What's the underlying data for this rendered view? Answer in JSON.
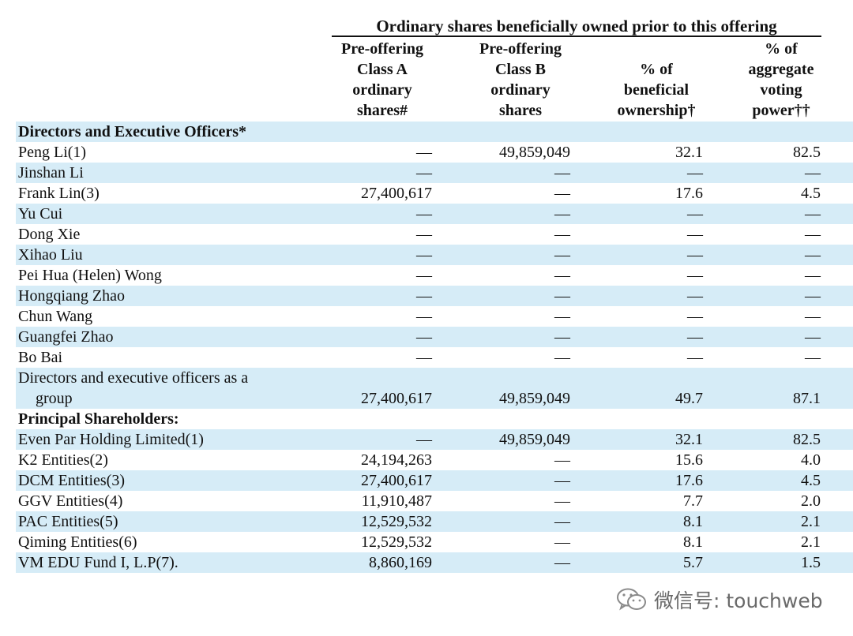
{
  "header": {
    "group_title": "Ordinary shares beneficially owned prior to this offering",
    "columns": [
      [
        "Pre-offering",
        "Class  A",
        "ordinary",
        "shares#"
      ],
      [
        "Pre-offering",
        "Class B",
        "ordinary",
        "shares"
      ],
      [
        "% of",
        "beneficial",
        "ownership†"
      ],
      [
        "% of",
        "aggregate",
        "voting",
        "power††"
      ]
    ]
  },
  "rows": [
    {
      "label": "Directors and Executive Officers*",
      "section": true,
      "values": [
        "",
        "",
        "",
        ""
      ]
    },
    {
      "label": "Peng Li(1)",
      "values": [
        "—",
        "49,859,049",
        "32.1",
        "82.5"
      ]
    },
    {
      "label": "Jinshan Li",
      "values": [
        "—",
        "—",
        "—",
        "—"
      ]
    },
    {
      "label": "Frank Lin(3)",
      "values": [
        "27,400,617",
        "—",
        "17.6",
        "4.5"
      ]
    },
    {
      "label": "Yu Cui",
      "values": [
        "—",
        "—",
        "—",
        "—"
      ]
    },
    {
      "label": "Dong Xie",
      "values": [
        "—",
        "—",
        "—",
        "—"
      ]
    },
    {
      "label": "Xihao Liu",
      "values": [
        "—",
        "—",
        "—",
        "—"
      ]
    },
    {
      "label": "Pei Hua (Helen) Wong",
      "values": [
        "—",
        "—",
        "—",
        "—"
      ]
    },
    {
      "label": "Hongqiang Zhao",
      "values": [
        "—",
        "—",
        "—",
        "—"
      ]
    },
    {
      "label": "Chun Wang",
      "values": [
        "—",
        "—",
        "—",
        "—"
      ]
    },
    {
      "label": "Guangfei Zhao",
      "values": [
        "—",
        "—",
        "—",
        "—"
      ]
    },
    {
      "label": "Bo Bai",
      "values": [
        "—",
        "—",
        "—",
        "—"
      ]
    },
    {
      "label": "Directors and executive officers as a",
      "label2": "group",
      "values": [
        "27,400,617",
        "49,859,049",
        "49.7",
        "87.1"
      ]
    },
    {
      "label": "Principal Shareholders:",
      "section": true,
      "values": [
        "",
        "",
        "",
        ""
      ]
    },
    {
      "label": "Even Par Holding Limited(1)",
      "values": [
        "—",
        "49,859,049",
        "32.1",
        "82.5"
      ]
    },
    {
      "label": "K2 Entities(2)",
      "values": [
        "24,194,263",
        "—",
        "15.6",
        "4.0"
      ]
    },
    {
      "label": "DCM Entities(3)",
      "values": [
        "27,400,617",
        "—",
        "17.6",
        "4.5"
      ]
    },
    {
      "label": "GGV Entities(4)",
      "values": [
        "11,910,487",
        "—",
        "7.7",
        "2.0"
      ]
    },
    {
      "label": "PAC Entities(5)",
      "values": [
        "12,529,532",
        "—",
        "8.1",
        "2.1"
      ]
    },
    {
      "label": "Qiming Entities(6)",
      "values": [
        "12,529,532",
        "—",
        "8.1",
        "2.1"
      ]
    },
    {
      "label": "VM EDU Fund I, L.P(7).",
      "values": [
        "8,860,169",
        "—",
        "5.7",
        "1.5"
      ]
    }
  ],
  "watermark": {
    "text": "微信号: touchweb",
    "icon": "wechat-icon"
  },
  "colors": {
    "shade": "#d6ecf7",
    "text": "#111111",
    "watermark": "#6a6a6a"
  }
}
